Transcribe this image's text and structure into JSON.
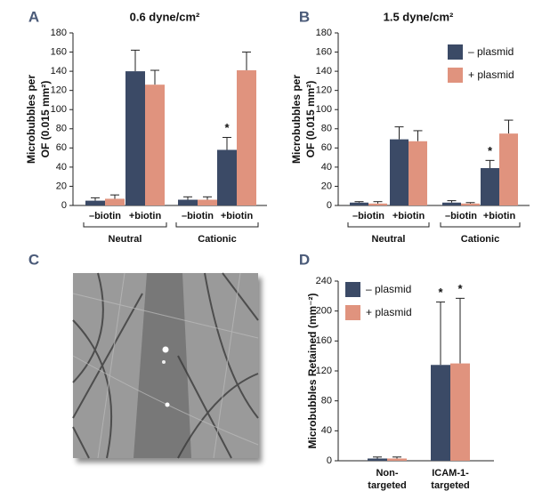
{
  "chart_data": [
    {
      "panel": "A",
      "type": "bar",
      "title": "0.6 dyne/cm²",
      "ylabel": [
        "Microbubbles per",
        "OF (0.015 mm²)"
      ],
      "categories": [
        "–biotin",
        "+biotin",
        "–biotin",
        "+biotin"
      ],
      "groups": [
        "Neutral",
        "Cationic"
      ],
      "series": [
        {
          "color": "#3b4a66",
          "values": [
            5,
            140,
            6,
            58
          ],
          "errors": [
            3,
            22,
            3,
            13
          ]
        },
        {
          "color": "#e0937e",
          "values": [
            7,
            126,
            6,
            141
          ],
          "errors": [
            4,
            15,
            3,
            19
          ]
        }
      ],
      "annotations": [
        {
          "text": "*",
          "series": 0,
          "index": 3
        }
      ],
      "ylim": [
        0,
        180
      ],
      "yticks": [
        0,
        20,
        40,
        60,
        80,
        100,
        120,
        140,
        160,
        180
      ]
    },
    {
      "panel": "B",
      "type": "bar",
      "title": "1.5 dyne/cm²",
      "ylabel": [
        "Microbubbles per",
        "OF (0.015 mm²)"
      ],
      "categories": [
        "–biotin",
        "+biotin",
        "–biotin",
        "+biotin"
      ],
      "groups": [
        "Neutral",
        "Cationic"
      ],
      "series": [
        {
          "name": "– plasmid",
          "color": "#3b4a66",
          "values": [
            3,
            69,
            3,
            39
          ],
          "errors": [
            1,
            13,
            2,
            8
          ]
        },
        {
          "name": "+ plasmid",
          "color": "#e0937e",
          "values": [
            2,
            67,
            2,
            75
          ],
          "errors": [
            2,
            11,
            1,
            14
          ]
        }
      ],
      "annotations": [
        {
          "text": "*",
          "series": 0,
          "index": 3
        }
      ],
      "legend": "upper right",
      "ylim": [
        0,
        180
      ],
      "yticks": [
        0,
        20,
        40,
        60,
        80,
        100,
        120,
        140,
        160,
        180
      ]
    },
    {
      "panel": "D",
      "type": "bar",
      "ylabel": [
        "Microbubbles Retained (mm⁻²)"
      ],
      "categories": [
        [
          "Non-",
          "targeted"
        ],
        [
          "ICAM-1-",
          "targeted"
        ]
      ],
      "series": [
        {
          "name": "– plasmid",
          "color": "#3b4a66",
          "values": [
            3,
            128
          ],
          "errors": [
            2,
            84
          ]
        },
        {
          "name": "+ plasmid",
          "color": "#e0937e",
          "values": [
            3,
            130
          ],
          "errors": [
            2,
            87
          ]
        }
      ],
      "annotations": [
        {
          "text": "*",
          "series": 0,
          "index": 1
        },
        {
          "text": "*",
          "series": 1,
          "index": 1
        }
      ],
      "legend": "upper left",
      "ylim": [
        0,
        240
      ],
      "yticks": [
        0,
        40,
        80,
        120,
        160,
        200,
        240
      ]
    }
  ],
  "image_panel": {
    "panel": "C"
  }
}
